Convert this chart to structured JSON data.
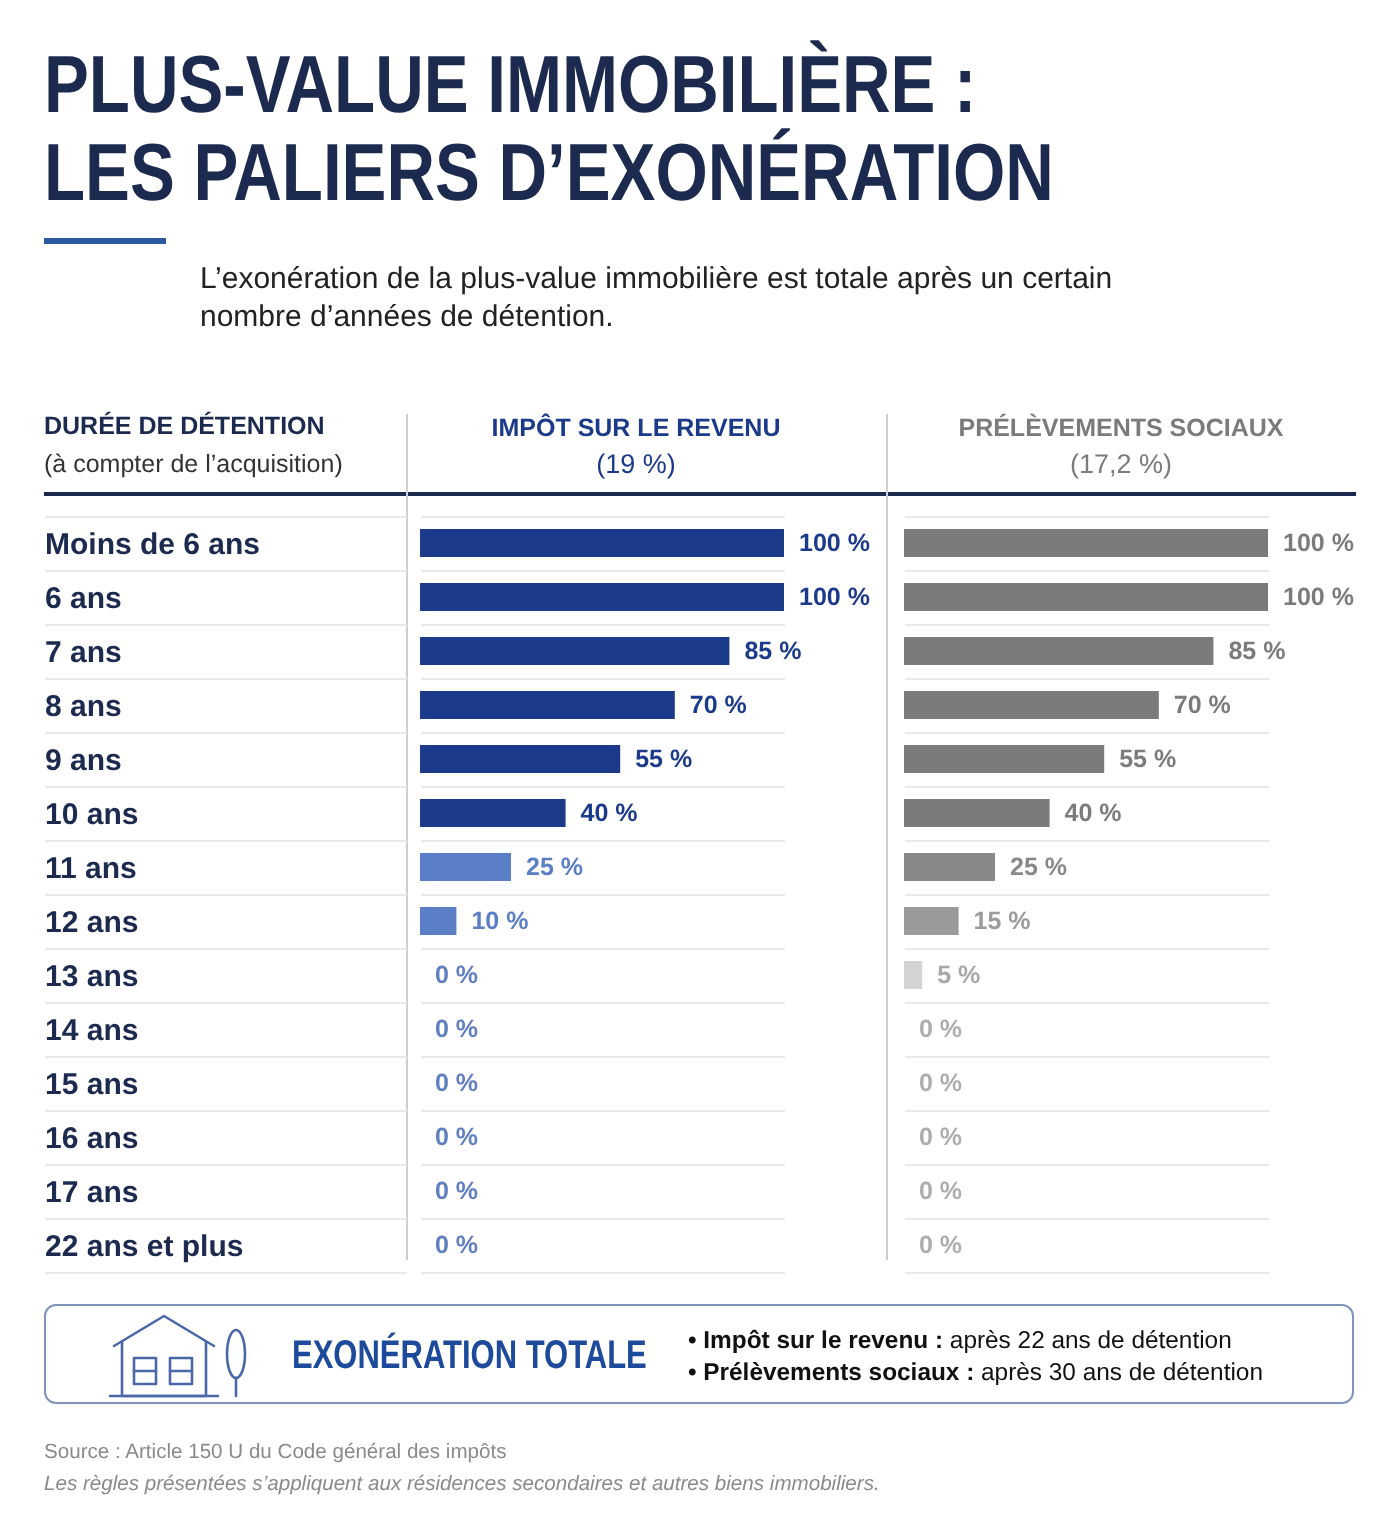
{
  "chart_data": [
    {
      "type": "other",
      "title": "PLUS-VALUE IMMOBILIÈRE :\nLES PALIERS D’EXONÉRATION",
      "subtitle": "L’exonération de la plus-value immobilière est totale après un certain nombre d’années de détention."
    },
    {
      "type": "bar",
      "orientation": "horizontal",
      "title": "IMPÔT SUR LE REVENU",
      "subtitle": "(19 %)",
      "ylabel": "DURÉE DE DÉTENTION\n(à compter de l’acquisition)",
      "categories": [
        "Moins de 6 ans",
        "6 ans",
        "7 ans",
        "8 ans",
        "9 ans",
        "10 ans",
        "11 ans",
        "12 ans",
        "13 ans",
        "14 ans",
        "15 ans",
        "16 ans",
        "17 ans",
        "22 ans et plus"
      ],
      "values": [
        100,
        100,
        85,
        70,
        55,
        40,
        25,
        10,
        0,
        0,
        0,
        0,
        0,
        0
      ],
      "colors": [
        "#1b3a8a",
        "#1b3a8a",
        "#1b3a8a",
        "#1b3a8a",
        "#1b3a8a",
        "#1b3a8a",
        "#5a7fc6",
        "#5a7fc6",
        "#5f7fbf",
        "#5f7fbf",
        "#5f7fbf",
        "#5f7fbf",
        "#5f7fbf",
        "#5f7fbf"
      ],
      "value_labels": [
        "100 %",
        "100 %",
        "85 %",
        "70 %",
        "55 %",
        "40 %",
        "25 %",
        "10 %",
        "0 %",
        "0 %",
        "0 %",
        "0 %",
        "0 %",
        "0 %"
      ],
      "tick_labels": "y",
      "grid": "y"
    },
    {
      "type": "bar",
      "orientation": "horizontal",
      "title": "PRÉLÈVEMENTS SOCIAUX",
      "subtitle": "(17,2 %)",
      "categories": [
        "Moins de 6 ans",
        "6 ans",
        "7 ans",
        "8 ans",
        "9 ans",
        "10 ans",
        "11 ans",
        "12 ans",
        "13 ans",
        "14 ans",
        "15 ans",
        "16 ans",
        "17 ans",
        "22 ans et plus"
      ],
      "values": [
        100,
        100,
        85,
        70,
        55,
        40,
        25,
        15,
        5,
        0,
        0,
        0,
        0,
        0
      ],
      "colors": [
        "#7b7b7b",
        "#7b7b7b",
        "#7b7b7b",
        "#7b7b7b",
        "#7b7b7b",
        "#7b7b7b",
        "#888888",
        "#9a9a9a",
        "#d3d3d3",
        "#adadad",
        "#adadad",
        "#adadad",
        "#adadad",
        "#adadad"
      ],
      "value_labels": [
        "100 %",
        "100 %",
        "85 %",
        "70 %",
        "55 %",
        "40 %",
        "25 %",
        "15 %",
        "5 %",
        "0 %",
        "0 %",
        "0 %",
        "0 %",
        "0 %"
      ],
      "tick_labels": false,
      "grid": "y"
    },
    {
      "type": "other",
      "title": "EXONÉRATION TOTALE",
      "annotations": [
        "• Impôt sur le revenu : après 22 ans de détention",
        "• Prélèvements sociaux : après 30 ans de détention",
        "Source : Article 150 U du Code général des impôts",
        "Les règles présentées s’appliquent aux résidences secondaires et autres biens immobiliers."
      ]
    }
  ]
}
